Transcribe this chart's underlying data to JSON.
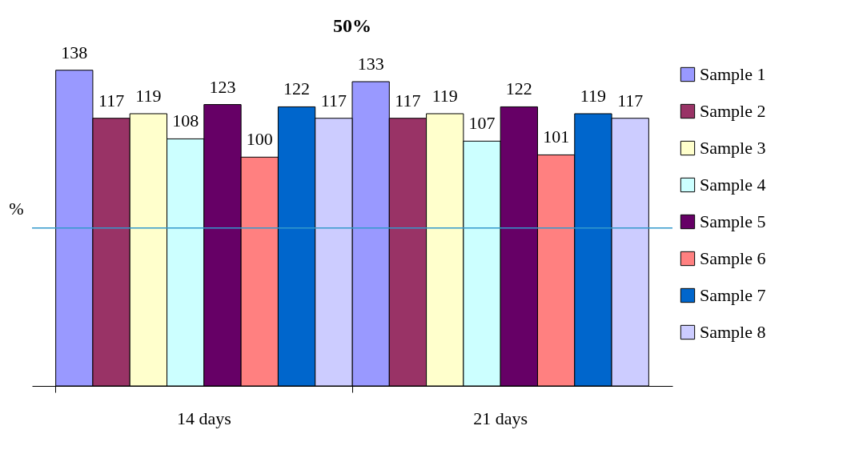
{
  "chart_data": {
    "type": "bar",
    "title": "50%",
    "ylabel": "%",
    "categories": [
      "14 days",
      "21 days"
    ],
    "series": [
      {
        "name": "Sample 1",
        "color": "#9999ff",
        "values": [
          138,
          133
        ]
      },
      {
        "name": "Sample 2",
        "color": "#993366",
        "values": [
          117,
          117
        ]
      },
      {
        "name": "Sample 3",
        "color": "#ffffcc",
        "values": [
          119,
          119
        ]
      },
      {
        "name": "Sample 4",
        "color": "#ccffff",
        "values": [
          108,
          107
        ]
      },
      {
        "name": "Sample 5",
        "color": "#660066",
        "values": [
          123,
          122
        ]
      },
      {
        "name": "Sample 6",
        "color": "#ff8080",
        "values": [
          100,
          101
        ]
      },
      {
        "name": "Sample 7",
        "color": "#0066cc",
        "values": [
          122,
          119
        ]
      },
      {
        "name": "Sample 8",
        "color": "#ccccff",
        "values": [
          117,
          117
        ]
      }
    ],
    "data_labels": true,
    "legend": "right",
    "grid": false,
    "ref_lines": [
      {
        "axis": "y",
        "value": 69,
        "color": "#3399cc"
      }
    ]
  }
}
